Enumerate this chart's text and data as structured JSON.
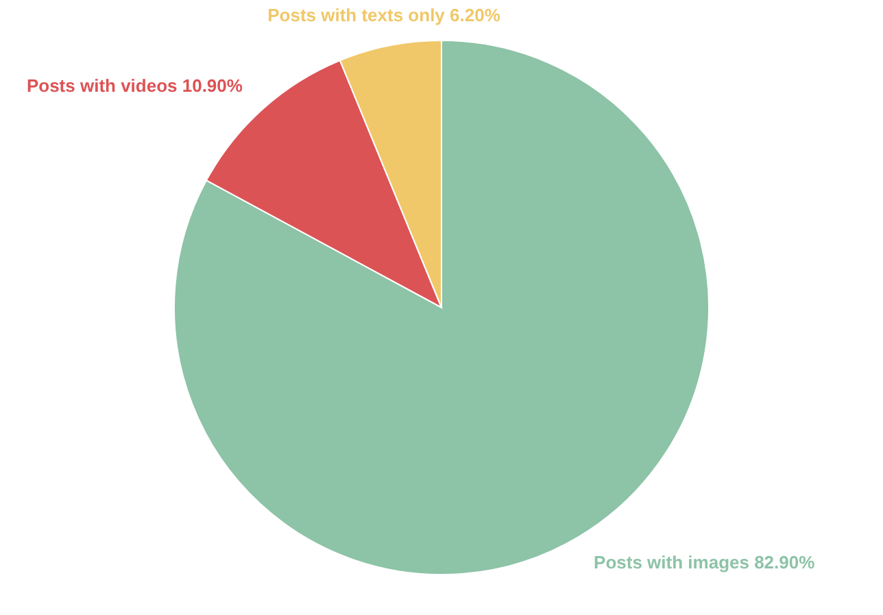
{
  "chart_data": {
    "type": "pie",
    "categories": [
      "Posts with images",
      "Posts with videos",
      "Posts with texts only"
    ],
    "values": [
      82.9,
      10.9,
      6.2
    ],
    "colors": [
      "#8dc3a7",
      "#dc5355",
      "#f0c869"
    ],
    "value_labels": [
      "82.90%",
      "10.90%",
      "6.20%"
    ]
  }
}
